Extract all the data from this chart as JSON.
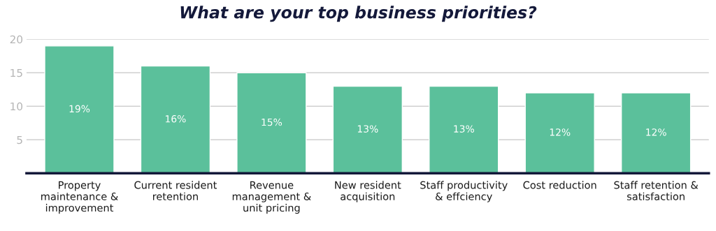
{
  "chart_data": {
    "type": "bar",
    "title": "What are your top business priorities?",
    "categories": [
      "Property\nmaintenance &\nimprovement",
      "Current resident\nretention",
      "Revenue\nmanagement &\nunit pricing",
      "New resident\nacquisition",
      "Staff productivity\n& effciency",
      "Cost reduction",
      "Staff retention &\nsatisfaction"
    ],
    "values": [
      19,
      16,
      15,
      13,
      13,
      12,
      12
    ],
    "value_labels": [
      "19%",
      "16%",
      "15%",
      "13%",
      "13%",
      "12%",
      "12%"
    ],
    "color": "#5bc09b",
    "ylim": [
      0,
      20
    ],
    "yticks": [
      5,
      10,
      15,
      20
    ],
    "grid": "y"
  }
}
